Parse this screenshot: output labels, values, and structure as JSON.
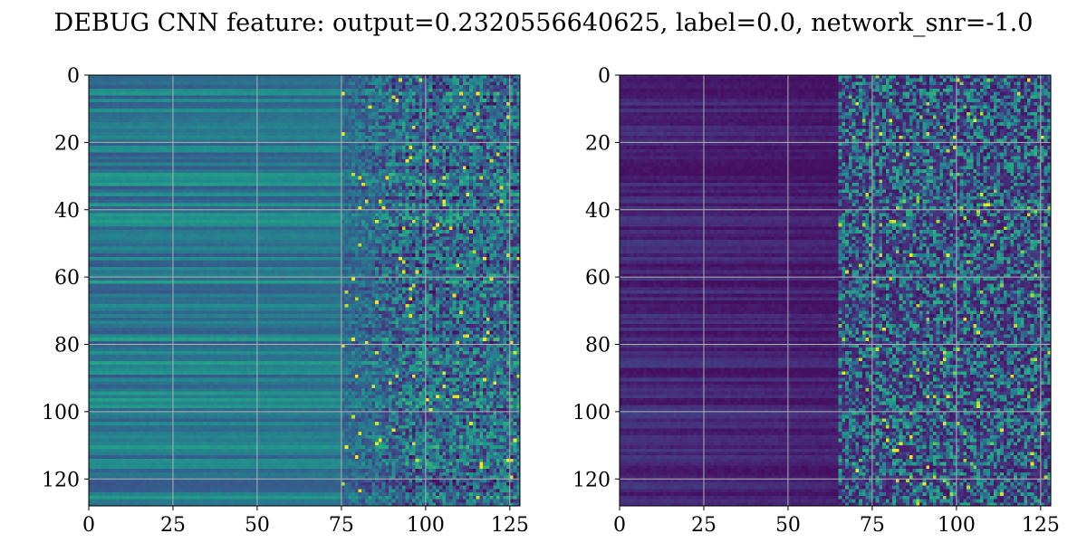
{
  "figure": {
    "title": "DEBUG CNN feature: output=0.2320556640625, label=0.0, network_snr=-1.0"
  },
  "chart_data": [
    {
      "type": "heatmap",
      "colormap": "viridis",
      "grid": true,
      "xlim": [
        0,
        128
      ],
      "ylim": [
        128,
        0
      ],
      "x_ticks": [
        0,
        25,
        50,
        75,
        100,
        125
      ],
      "y_ticks": [
        0,
        20,
        40,
        60,
        80,
        100,
        120
      ],
      "x_tick_labels": [
        "0",
        "25",
        "50",
        "75",
        "100",
        "125"
      ],
      "y_tick_labels": [
        "0",
        "20",
        "40",
        "60",
        "80",
        "100",
        "120"
      ],
      "rows": 128,
      "cols": 128,
      "value_range": [
        0,
        1
      ],
      "description": "Horizontal row-wise bands in the left region (cols 0-75) at mid-range values; noisy columns 75-128 with scattered bright yellow pixels.",
      "base_level": 0.42,
      "noise_start_col": 75
    },
    {
      "type": "heatmap",
      "colormap": "viridis",
      "grid": true,
      "xlim": [
        0,
        128
      ],
      "ylim": [
        128,
        0
      ],
      "x_ticks": [
        0,
        25,
        50,
        75,
        100,
        125
      ],
      "y_ticks": [
        0,
        20,
        40,
        60,
        80,
        100,
        120
      ],
      "x_tick_labels": [
        "0",
        "25",
        "50",
        "75",
        "100",
        "125"
      ],
      "y_tick_labels": [
        "0",
        "20",
        "40",
        "60",
        "80",
        "100",
        "120"
      ],
      "rows": 128,
      "cols": 128,
      "value_range": [
        0,
        1
      ],
      "description": "Mostly dark purple with faint row bands on the left (cols 0-60); dense noisy teal/green/yellow speckle from col ~65 onward.",
      "base_level": 0.12,
      "noise_start_col": 65
    }
  ]
}
